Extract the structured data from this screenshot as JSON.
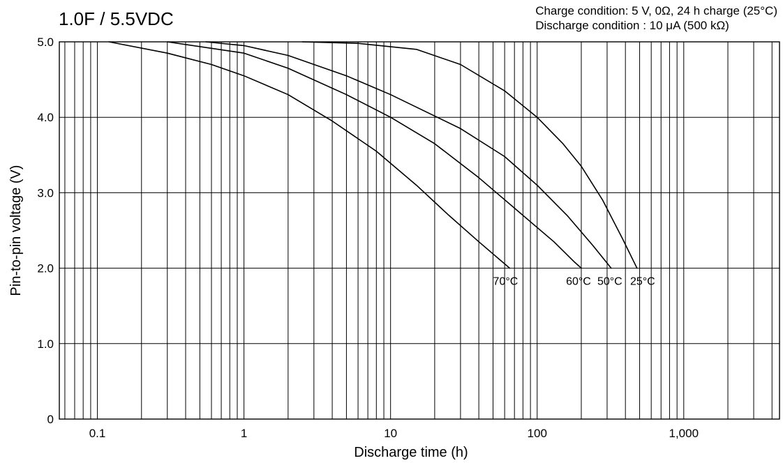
{
  "chart_data": {
    "type": "line",
    "title": "1.0F  / 5.5VDC",
    "conditions": [
      "Charge condition: 5 V, 0Ω, 24 h charge (25°C)",
      "Discharge condition : 10 μA (500 kΩ)"
    ],
    "xlabel": "Discharge time (h)",
    "ylabel": "Pin-to-pin voltage (V)",
    "x_scale": "log",
    "xlim": [
      0.055,
      4500
    ],
    "ylim": [
      0,
      5.0
    ],
    "grid": true,
    "x_ticks": [
      {
        "value": 0.1,
        "label": "0.1"
      },
      {
        "value": 1,
        "label": "1"
      },
      {
        "value": 10,
        "label": "10"
      },
      {
        "value": 100,
        "label": "100"
      },
      {
        "value": 1000,
        "label": "1,000"
      }
    ],
    "y_ticks": [
      {
        "value": 0,
        "label": "0"
      },
      {
        "value": 1,
        "label": "1.0"
      },
      {
        "value": 2,
        "label": "2.0"
      },
      {
        "value": 3,
        "label": "3.0"
      },
      {
        "value": 4,
        "label": "4.0"
      },
      {
        "value": 5,
        "label": "5.0"
      }
    ],
    "series": [
      {
        "name": "70°C",
        "x": [
          0.12,
          0.3,
          0.6,
          1.0,
          2.0,
          4.0,
          8.0,
          15,
          25,
          40,
          55,
          65
        ],
        "y": [
          5.0,
          4.85,
          4.7,
          4.55,
          4.3,
          3.95,
          3.55,
          3.1,
          2.7,
          2.35,
          2.12,
          2.0
        ]
      },
      {
        "name": "60°C",
        "x": [
          0.3,
          1.0,
          2.0,
          5.0,
          10,
          20,
          40,
          80,
          130,
          180,
          200
        ],
        "y": [
          5.0,
          4.85,
          4.65,
          4.3,
          4.0,
          3.65,
          3.2,
          2.7,
          2.35,
          2.08,
          2.0
        ]
      },
      {
        "name": "50°C",
        "x": [
          0.55,
          1.0,
          2.0,
          5.0,
          10,
          30,
          60,
          100,
          160,
          240,
          320
        ],
        "y": [
          5.0,
          4.95,
          4.82,
          4.55,
          4.3,
          3.85,
          3.48,
          3.1,
          2.7,
          2.3,
          2.0
        ]
      },
      {
        "name": "25°C",
        "x": [
          2.5,
          6.0,
          15,
          30,
          60,
          100,
          150,
          200,
          280,
          380,
          480
        ],
        "y": [
          5.0,
          4.98,
          4.9,
          4.7,
          4.35,
          4.0,
          3.65,
          3.35,
          2.9,
          2.4,
          2.0
        ]
      }
    ]
  }
}
